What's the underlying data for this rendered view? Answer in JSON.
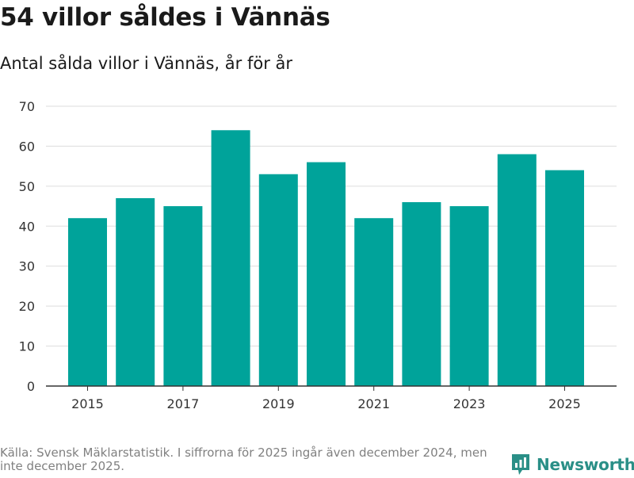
{
  "title": "54 villor såldes i Vännäs",
  "subtitle": "Antal sålda villor i Vännäs, år för år",
  "footer": {
    "source": "Källa: Svensk Mäklarstatistik. I siffrorna för 2025 ingår även december 2024, men inte december 2025.",
    "brand": "Newsworthy"
  },
  "colors": {
    "bar": "#00a39a",
    "grid": "#dddddd",
    "axis": "#333333",
    "brand": "#2a8f87"
  },
  "chart_data": {
    "type": "bar",
    "title": "Antal sålda villor i Vännäs, år för år",
    "xlabel": "",
    "ylabel": "",
    "categories": [
      "2015",
      "2016",
      "2017",
      "2018",
      "2019",
      "2020",
      "2021",
      "2022",
      "2023",
      "2024",
      "2025"
    ],
    "values": [
      42,
      47,
      45,
      64,
      53,
      56,
      42,
      46,
      45,
      58,
      54
    ],
    "x_tick_labels": [
      "2015",
      "2017",
      "2019",
      "2021",
      "2023",
      "2025"
    ],
    "y_ticks": [
      0,
      10,
      20,
      30,
      40,
      50,
      60,
      70
    ],
    "ylim": [
      0,
      70
    ],
    "grid": true
  }
}
